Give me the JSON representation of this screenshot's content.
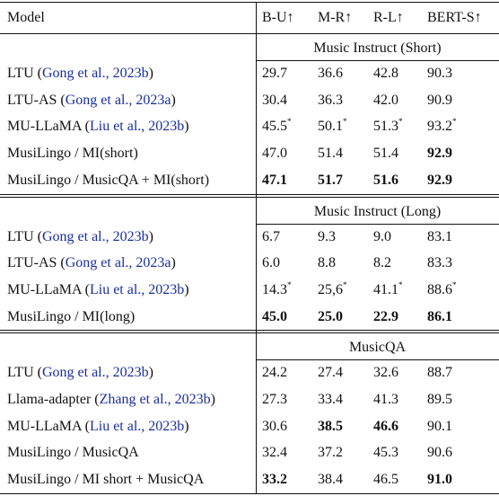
{
  "table": {
    "header": [
      "Model",
      "B-U↑",
      "M-R↑",
      "R-L↑",
      "BERT-S↑"
    ],
    "sections": [
      {
        "title": "Music Instruct (Short)",
        "rows": [
          {
            "model": "LTU (",
            "cite": "Gong et al., 2023b",
            "after": ")",
            "cells": [
              {
                "text": "29.7"
              },
              {
                "text": "36.6"
              },
              {
                "text": "42.8"
              },
              {
                "text": "90.3"
              }
            ]
          },
          {
            "model": "LTU-AS (",
            "cite": "Gong et al., 2023a",
            "after": ")",
            "cells": [
              {
                "text": "30.4"
              },
              {
                "text": "36.3"
              },
              {
                "text": "42.0"
              },
              {
                "text": "90.9"
              }
            ]
          },
          {
            "model": "MU-LLaMA (",
            "cite": "Liu et al., 2023b",
            "after": ")",
            "cells": [
              {
                "text": "45.5",
                "sup": "*"
              },
              {
                "text": "50.1",
                "sup": "*"
              },
              {
                "text": "51.3",
                "sup": "*"
              },
              {
                "text": "93.2",
                "sup": "*"
              }
            ]
          },
          {
            "model": "MusiLingo / MI(short)",
            "cells": [
              {
                "text": "47.0"
              },
              {
                "text": "51.4"
              },
              {
                "text": "51.4"
              },
              {
                "text": "92.9",
                "bold": true
              }
            ]
          },
          {
            "model": "MusiLingo / MusicQA + MI(short)",
            "cells": [
              {
                "text": "47.1",
                "bold": true
              },
              {
                "text": "51.7",
                "bold": true
              },
              {
                "text": "51.6",
                "bold": true
              },
              {
                "text": "92.9",
                "bold": true
              }
            ]
          }
        ]
      },
      {
        "title": "Music Instruct (Long)",
        "rows": [
          {
            "model": "LTU (",
            "cite": "Gong et al., 2023b",
            "after": ")",
            "cells": [
              {
                "text": "6.7"
              },
              {
                "text": "9.3"
              },
              {
                "text": "9.0"
              },
              {
                "text": "83.1"
              }
            ]
          },
          {
            "model": "LTU-AS (",
            "cite": "Gong et al., 2023a",
            "after": ")",
            "cells": [
              {
                "text": "6.0"
              },
              {
                "text": "8.8"
              },
              {
                "text": "8.2"
              },
              {
                "text": "83.3"
              }
            ]
          },
          {
            "model": "MU-LLaMA (",
            "cite": "Liu et al., 2023b",
            "after": ")",
            "cells": [
              {
                "text": "14.3",
                "sup": "*"
              },
              {
                "text": "25,6",
                "sup": "*"
              },
              {
                "text": "41.1",
                "sup": "*"
              },
              {
                "text": "88.6",
                "sup": "*"
              }
            ]
          },
          {
            "model": "MusiLingo / MI(long)",
            "cells": [
              {
                "text": "45.0",
                "bold": true
              },
              {
                "text": "25.0",
                "bold": true
              },
              {
                "text": "22.9",
                "bold": true
              },
              {
                "text": "86.1",
                "bold": true
              }
            ]
          }
        ]
      },
      {
        "title": "MusicQA",
        "rows": [
          {
            "model": "LTU (",
            "cite": "Gong et al., 2023b",
            "after": ")",
            "cells": [
              {
                "text": "24.2"
              },
              {
                "text": "27.4"
              },
              {
                "text": "32.6"
              },
              {
                "text": "88.7"
              }
            ]
          },
          {
            "model": "Llama-adapter (",
            "cite": "Zhang et al., 2023b",
            "after": ")",
            "cells": [
              {
                "text": "27.3"
              },
              {
                "text": "33.4"
              },
              {
                "text": "41.3"
              },
              {
                "text": "89.5"
              }
            ]
          },
          {
            "model": "MU-LLaMA (",
            "cite": "Liu et al., 2023b",
            "after": ")",
            "cells": [
              {
                "text": "30.6"
              },
              {
                "text": "38.5",
                "bold": true
              },
              {
                "text": "46.6",
                "bold": true
              },
              {
                "text": "90.1"
              }
            ]
          },
          {
            "model": "MusiLingo / MusicQA",
            "cells": [
              {
                "text": "32.4"
              },
              {
                "text": "37.2"
              },
              {
                "text": "45.3"
              },
              {
                "text": "90.6"
              }
            ]
          },
          {
            "model": "MusiLingo / MI short + MusicQA",
            "cells": [
              {
                "text": "33.2",
                "bold": true
              },
              {
                "text": "38.4"
              },
              {
                "text": "46.5"
              },
              {
                "text": "91.0",
                "bold": true
              }
            ]
          }
        ]
      }
    ]
  }
}
